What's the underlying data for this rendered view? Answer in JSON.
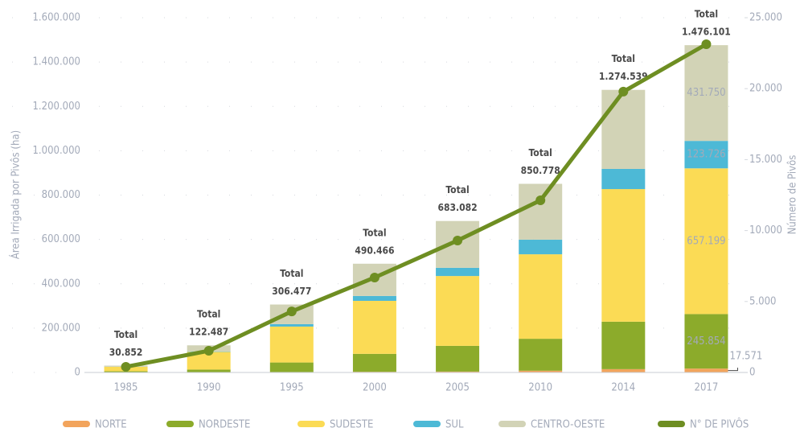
{
  "chart_data": {
    "type": "bar",
    "y_label": "Área Irrigada por Pivôs (ha)",
    "y2_label": "Número de Pivôs",
    "categories": [
      "1985",
      "1990",
      "1995",
      "2000",
      "2005",
      "2010",
      "2014",
      "2017"
    ],
    "series": [
      {
        "name": "NORTE",
        "color": "#f2a45c",
        "values": [
          500,
          1000,
          2000,
          3000,
          4000,
          8000,
          15000,
          17571
        ],
        "value_labels": [
          null,
          null,
          null,
          null,
          null,
          null,
          null,
          "17.571"
        ]
      },
      {
        "name": "NORDESTE",
        "color": "#8cab2b",
        "values": [
          5000,
          12000,
          43000,
          81000,
          116000,
          144000,
          214000,
          245854
        ],
        "value_labels": [
          null,
          null,
          null,
          null,
          null,
          null,
          null,
          "245.854"
        ]
      },
      {
        "name": "SUDESTE",
        "color": "#fbdb55",
        "values": [
          20000,
          80000,
          162000,
          239000,
          315000,
          381000,
          598000,
          657199
        ],
        "value_labels": [
          null,
          null,
          null,
          null,
          null,
          null,
          null,
          "657.199"
        ]
      },
      {
        "name": "SUL",
        "color": "#4db9d6",
        "values": [
          500,
          2000,
          11000,
          22000,
          37000,
          66000,
          91000,
          123726
        ],
        "value_labels": [
          null,
          null,
          null,
          null,
          null,
          null,
          null,
          "123.726"
        ]
      },
      {
        "name": "CENTRO-OESTE",
        "color": "#d2d3b6",
        "values": [
          4852,
          27487,
          88477,
          145466,
          211082,
          251778,
          356539,
          431750
        ],
        "value_labels": [
          null,
          null,
          null,
          null,
          null,
          null,
          null,
          "431.750"
        ]
      },
      {
        "name": "N° DE PIVÔS",
        "color": "#6e8e22",
        "type": "line",
        "axis": "y2",
        "values": [
          400,
          1530,
          4300,
          6690,
          9300,
          12130,
          19790,
          23130
        ]
      }
    ],
    "total_word": "Total",
    "totals": [
      30852,
      122487,
      306477,
      490466,
      683082,
      850778,
      1274539,
      1476101
    ],
    "total_labels": [
      "30.852",
      "122.487",
      "306.477",
      "490.466",
      "683.082",
      "850.778",
      "1.274.539",
      "1.476.101"
    ],
    "ylim": [
      0,
      1600000
    ],
    "yticks": [
      0,
      {
        "value": 200000,
        "label": "200.000"
      },
      {
        "value": 400000,
        "label": "400.000"
      },
      {
        "value": 600000,
        "label": "600.000"
      },
      {
        "value": 800000,
        "label": "800.000"
      },
      {
        "value": 1000000,
        "label": "1.000.000"
      },
      {
        "value": 1200000,
        "label": "1.200.000"
      },
      {
        "value": 1400000,
        "label": "1.400.000"
      },
      {
        "value": 1600000,
        "label": "1.600.000"
      }
    ],
    "y2lim": [
      0,
      25000
    ],
    "y2ticks": [
      0,
      {
        "value": 5000,
        "label": "5.000"
      },
      {
        "value": 10000,
        "label": "10.000"
      },
      {
        "value": 15000,
        "label": "15.000"
      },
      {
        "value": 20000,
        "label": "20.000"
      },
      {
        "value": 25000,
        "label": "25.000"
      }
    ],
    "grid": true,
    "legend": "bottom"
  }
}
